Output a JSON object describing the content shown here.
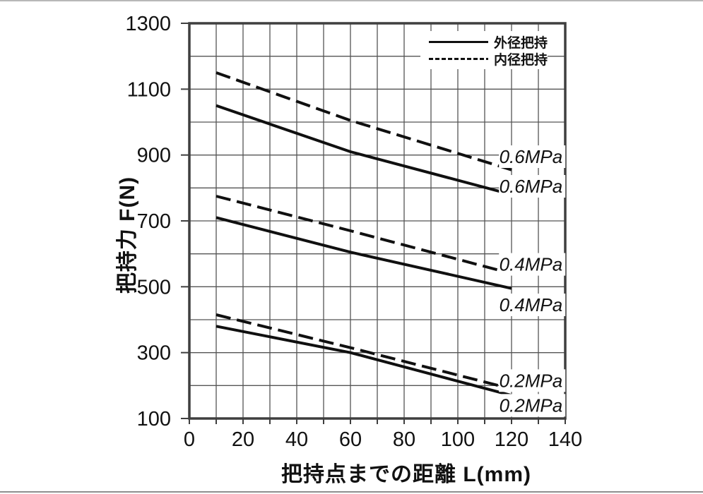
{
  "page": {
    "background": "#ffffff"
  },
  "chart_data": {
    "type": "line",
    "title": "",
    "xlabel": "把持点までの距離  L(mm)",
    "ylabel": "把持力  F(N)",
    "xlim": [
      0,
      140
    ],
    "ylim": [
      100,
      1300
    ],
    "x_ticks": [
      0,
      20,
      40,
      60,
      80,
      100,
      120,
      140
    ],
    "y_ticks": [
      100,
      300,
      500,
      700,
      900,
      1100,
      1300
    ],
    "x_grid_step": 10,
    "y_grid_step": 100,
    "grid": true,
    "legend_position": "top-right-inside",
    "legend": [
      {
        "label": "外径把持",
        "style": "solid"
      },
      {
        "label": "内径把持",
        "style": "dashed"
      }
    ],
    "colors": {
      "line": "#101010",
      "grid": "#555555",
      "frame": "#3f3f3f",
      "text": "#111111"
    },
    "series": [
      {
        "name": "内径把持 0.6MPa",
        "style": "dashed",
        "x": [
          10,
          60,
          120
        ],
        "y": [
          1150,
          1005,
          855
        ],
        "label": {
          "text": "0.6MPa",
          "x": 139,
          "y": 895
        }
      },
      {
        "name": "外径把持 0.6MPa",
        "style": "solid",
        "x": [
          10,
          60,
          120
        ],
        "y": [
          1050,
          910,
          780
        ],
        "label": {
          "text": "0.6MPa",
          "x": 139,
          "y": 805
        }
      },
      {
        "name": "内径把持 0.4MPa",
        "style": "dashed",
        "x": [
          10,
          60,
          120
        ],
        "y": [
          775,
          670,
          540
        ],
        "label": {
          "text": "0.4MPa",
          "x": 139,
          "y": 568
        }
      },
      {
        "name": "外径把持 0.4MPa",
        "style": "solid",
        "x": [
          10,
          60,
          120
        ],
        "y": [
          710,
          605,
          495
        ],
        "label": {
          "text": "0.4MPa",
          "x": 139,
          "y": 445
        }
      },
      {
        "name": "内径把持 0.2MPa",
        "style": "dashed",
        "x": [
          10,
          60,
          120
        ],
        "y": [
          415,
          315,
          190
        ],
        "label": {
          "text": "0.2MPa",
          "x": 139,
          "y": 215
        }
      },
      {
        "name": "外径把持 0.2MPa",
        "style": "solid",
        "x": [
          10,
          60,
          120
        ],
        "y": [
          380,
          300,
          170
        ],
        "label": {
          "text": "0.2MPa",
          "x": 139,
          "y": 140
        }
      }
    ]
  }
}
